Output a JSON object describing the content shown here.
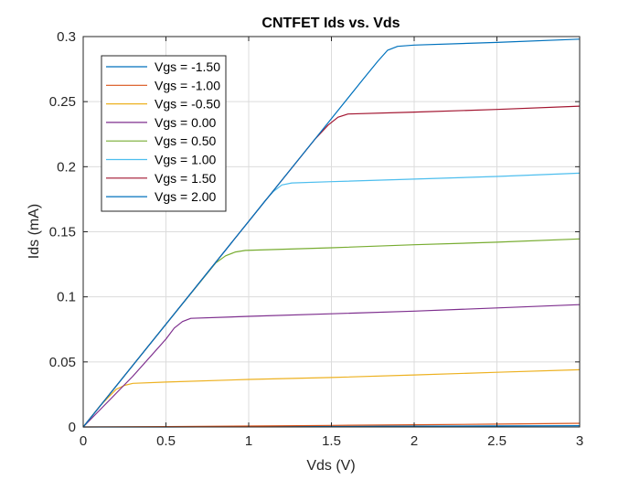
{
  "chart_data": {
    "type": "line",
    "title": "CNTFET Ids vs. Vds",
    "xlabel": "Vds (V)",
    "ylabel": "Ids (mA)",
    "xlim": [
      0,
      3
    ],
    "ylim": [
      0,
      0.3
    ],
    "xticks": [
      0,
      0.5,
      1,
      1.5,
      2,
      2.5,
      3
    ],
    "yticks": [
      0,
      0.05,
      0.1,
      0.15,
      0.2,
      0.25,
      0.3
    ],
    "xtick_labels": [
      "0",
      "0.5",
      "1",
      "1.5",
      "2",
      "2.5",
      "3"
    ],
    "ytick_labels": [
      "0",
      "0.05",
      "0.1",
      "0.15",
      "0.2",
      "0.25",
      "0.3"
    ],
    "grid": true,
    "legend_position": "top-left",
    "series": [
      {
        "name": "Vgs = -1.50",
        "color": "#0072BD",
        "x": [
          0,
          0.5,
          1,
          1.5,
          2,
          2.5,
          3
        ],
        "y": [
          0,
          0,
          0.0002,
          0.0004,
          0.0006,
          0.0008,
          0.001
        ]
      },
      {
        "name": "Vgs = -1.00",
        "color": "#D95319",
        "x": [
          0,
          0.5,
          1,
          1.5,
          2,
          2.5,
          3
        ],
        "y": [
          0,
          0.0003,
          0.0007,
          0.0012,
          0.0017,
          0.0022,
          0.0028
        ]
      },
      {
        "name": "Vgs = -0.50",
        "color": "#EDB120",
        "x": [
          0,
          0.1,
          0.2,
          0.25,
          0.3,
          0.5,
          1,
          1.5,
          2,
          2.5,
          3
        ],
        "y": [
          0,
          0.016,
          0.029,
          0.032,
          0.0335,
          0.0345,
          0.0365,
          0.038,
          0.04,
          0.042,
          0.044
        ]
      },
      {
        "name": "Vgs = 0.00",
        "color": "#7E2F8E",
        "x": [
          0,
          0.3,
          0.5,
          0.55,
          0.6,
          0.65,
          1,
          1.5,
          2,
          2.5,
          3
        ],
        "y": [
          0,
          0.039,
          0.0675,
          0.076,
          0.081,
          0.0835,
          0.085,
          0.087,
          0.089,
          0.0915,
          0.094
        ]
      },
      {
        "name": "Vgs = 0.50",
        "color": "#77AC30",
        "x": [
          0,
          0.5,
          0.8,
          0.86,
          0.92,
          0.98,
          1.5,
          2,
          2.5,
          3
        ],
        "y": [
          0,
          0.079,
          0.126,
          0.1315,
          0.1345,
          0.1357,
          0.1377,
          0.14,
          0.142,
          0.1445
        ]
      },
      {
        "name": "Vgs = 1.00",
        "color": "#4DBEEE",
        "x": [
          0,
          0.5,
          1,
          1.1,
          1.15,
          1.2,
          1.26,
          1.5,
          2,
          2.5,
          3
        ],
        "y": [
          0,
          0.079,
          0.158,
          0.174,
          0.181,
          0.186,
          0.1875,
          0.1885,
          0.1905,
          0.1925,
          0.195
        ]
      },
      {
        "name": "Vgs = 1.50",
        "color": "#A2142F",
        "x": [
          0,
          0.5,
          1,
          1.4,
          1.48,
          1.54,
          1.6,
          2,
          2.5,
          3
        ],
        "y": [
          0,
          0.079,
          0.158,
          0.221,
          0.232,
          0.238,
          0.2405,
          0.242,
          0.244,
          0.2465
        ]
      },
      {
        "name": "Vgs = 2.00",
        "color": "#0072BD",
        "x": [
          0,
          0.5,
          1,
          1.5,
          1.7,
          1.78,
          1.84,
          1.9,
          2,
          2.5,
          3
        ],
        "y": [
          0,
          0.079,
          0.158,
          0.237,
          0.2685,
          0.281,
          0.2895,
          0.2925,
          0.2935,
          0.2955,
          0.298
        ]
      }
    ]
  }
}
